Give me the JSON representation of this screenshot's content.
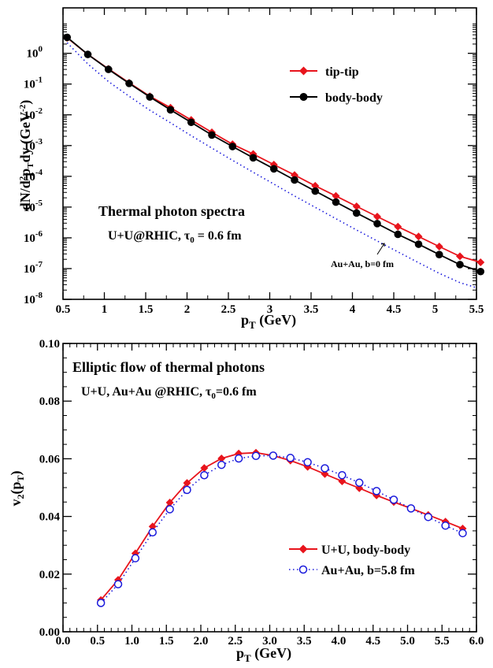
{
  "colors": {
    "red": "#e8141c",
    "black": "#000000",
    "blue": "#1a1adc"
  },
  "chart_data": [
    {
      "type": "line",
      "yscale": "log",
      "xlim": [
        0.5,
        5.5
      ],
      "ylim": [
        1e-08,
        30
      ],
      "x_ticks": [
        "0.5",
        "1",
        "1.5",
        "2",
        "2.5",
        "3",
        "3.5",
        "4",
        "4.5",
        "5",
        "5.5"
      ],
      "xlabel": {
        "main": "p",
        "sub": "T",
        "rest": " (GeV)"
      },
      "ylabel": {
        "p1": "dN/d",
        "sup1": "2",
        "p2": "p",
        "sub1": "T",
        "p3": "dy (GeV",
        "sup2": "-2",
        "p4": ")"
      },
      "annotations": {
        "title": "Thermal photon spectra",
        "system_main": "U+U@RHIC, τ",
        "system_sub": "0",
        "system_rest": " = 0.6 fm",
        "auau_label": "Au+Au, b=0 fm"
      },
      "series": [
        {
          "name": "tip-tip",
          "color": "#e8141c",
          "marker": "diamond",
          "line": "solid",
          "x": [
            0.55,
            0.8,
            1.05,
            1.3,
            1.55,
            1.8,
            2.05,
            2.3,
            2.55,
            2.8,
            3.05,
            3.3,
            3.55,
            3.8,
            4.05,
            4.3,
            4.55,
            4.8,
            5.05,
            5.3,
            5.55
          ],
          "y": [
            3.2,
            0.92,
            0.31,
            0.11,
            0.04,
            0.017,
            0.0068,
            0.0027,
            0.0011,
            0.00053,
            0.00024,
            0.00011,
            4.9e-05,
            2.3e-05,
            1.05e-05,
            4.9e-06,
            2.3e-06,
            1.1e-06,
            5.2e-07,
            2.5e-07,
            1.6e-07
          ]
        },
        {
          "name": "body-body",
          "color": "#000000",
          "marker": "circle",
          "line": "solid",
          "x": [
            0.55,
            0.8,
            1.05,
            1.3,
            1.55,
            1.8,
            2.05,
            2.3,
            2.55,
            2.8,
            3.05,
            3.3,
            3.55,
            3.8,
            4.05,
            4.3,
            4.55,
            4.8,
            5.05,
            5.3,
            5.55
          ],
          "y": [
            3.3,
            0.92,
            0.3,
            0.105,
            0.038,
            0.0145,
            0.0057,
            0.0022,
            0.00093,
            0.0004,
            0.000175,
            7.6e-05,
            3.3e-05,
            1.45e-05,
            6.4e-06,
            2.9e-06,
            1.3e-06,
            6.2e-07,
            2.85e-07,
            1.35e-07,
            8e-08
          ]
        },
        {
          "name": "Au+Au, b=0 fm",
          "color": "#1a1adc",
          "marker": "none",
          "line": "dotted",
          "x": [
            0.55,
            0.8,
            1.05,
            1.3,
            1.55,
            1.8,
            2.05,
            2.3,
            2.55,
            2.8,
            3.05,
            3.3,
            3.55,
            3.8,
            4.05,
            4.3,
            4.55,
            4.8,
            5.05,
            5.3,
            5.5
          ],
          "y": [
            2.2,
            0.45,
            0.12,
            0.04,
            0.014,
            0.0055,
            0.0021,
            0.00083,
            0.00033,
            0.000135,
            5.6e-05,
            2.3e-05,
            9.8e-06,
            4.2e-06,
            1.8e-06,
            7.9e-07,
            3.5e-07,
            1.55e-07,
            7e-08,
            3.5e-08,
            2.4e-08
          ]
        }
      ]
    },
    {
      "type": "line",
      "xlim": [
        0.0,
        6.0
      ],
      "ylim": [
        0.0,
        0.1
      ],
      "x_ticks": [
        "0.0",
        "0.5",
        "1.0",
        "1.5",
        "2.0",
        "2.5",
        "3.0",
        "3.5",
        "4.0",
        "4.5",
        "5.0",
        "5.5",
        "6.0"
      ],
      "y_ticks": [
        "0.00",
        "0.02",
        "0.04",
        "0.06",
        "0.08",
        "0.10"
      ],
      "xlabel": {
        "main": "p",
        "sub": "T",
        "rest": " (GeV)"
      },
      "ylabel": {
        "main": "v",
        "sub": "2",
        "rest1": "(p",
        "sub2": "T",
        "rest2": ")"
      },
      "annotations": {
        "title": "Elliptic flow of thermal photons",
        "system_main": "U+U, Au+Au @RHIC, τ",
        "system_sub": "0",
        "system_rest": "=0.6 fm"
      },
      "series": [
        {
          "name": "U+U, body-body",
          "color": "#e8141c",
          "marker": "diamond",
          "line": "solid",
          "x": [
            0.55,
            0.8,
            1.05,
            1.3,
            1.55,
            1.8,
            2.05,
            2.3,
            2.55,
            2.8,
            3.05,
            3.3,
            3.55,
            3.8,
            4.05,
            4.3,
            4.55,
            4.8,
            5.05,
            5.3,
            5.55,
            5.8
          ],
          "y": [
            0.011,
            0.018,
            0.0272,
            0.0365,
            0.0448,
            0.0516,
            0.0568,
            0.0601,
            0.0618,
            0.0621,
            0.0611,
            0.0594,
            0.0572,
            0.0547,
            0.0522,
            0.0498,
            0.0473,
            0.045,
            0.0428,
            0.0405,
            0.0382,
            0.0358
          ]
        },
        {
          "name": "Au+Au, b=5.8 fm",
          "color": "#1a1adc",
          "marker": "open-circle",
          "line": "dotted",
          "x": [
            0.55,
            0.8,
            1.05,
            1.3,
            1.55,
            1.8,
            2.05,
            2.3,
            2.55,
            2.8,
            3.05,
            3.3,
            3.55,
            3.8,
            4.05,
            4.3,
            4.55,
            4.8,
            5.05,
            5.3,
            5.55,
            5.8
          ],
          "y": [
            0.01,
            0.0165,
            0.0255,
            0.0345,
            0.0425,
            0.0492,
            0.0543,
            0.0579,
            0.0601,
            0.061,
            0.0611,
            0.0603,
            0.0588,
            0.0567,
            0.0543,
            0.0517,
            0.0488,
            0.0458,
            0.0428,
            0.0398,
            0.0368,
            0.0342
          ]
        }
      ]
    }
  ]
}
